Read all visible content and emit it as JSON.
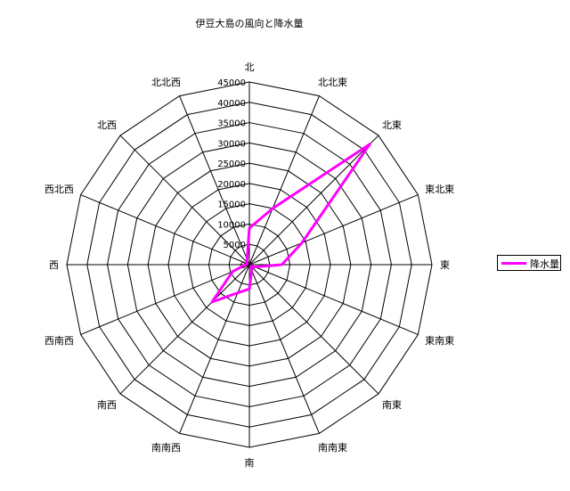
{
  "chart_data": {
    "type": "radar",
    "title": "伊豆大島の風向と降水量",
    "categories": [
      "北",
      "北北東",
      "北東",
      "東北東",
      "東",
      "東南東",
      "南東",
      "南南東",
      "南",
      "南南西",
      "南西",
      "西南西",
      "西",
      "西北西",
      "北西",
      "北北西"
    ],
    "radial_ticks": [
      "0",
      "5000",
      "10000",
      "15000",
      "20000",
      "25000",
      "30000",
      "35000",
      "40000",
      "45000"
    ],
    "rmax": 45000,
    "series": [
      {
        "name": "降水量",
        "color": "#ff00ff",
        "values": [
          9000,
          15000,
          42000,
          14000,
          8000,
          1500,
          500,
          1500,
          6000,
          7500,
          13000,
          4500,
          1000,
          500,
          1000,
          1500
        ]
      }
    ],
    "legend": "right",
    "grid": true
  }
}
